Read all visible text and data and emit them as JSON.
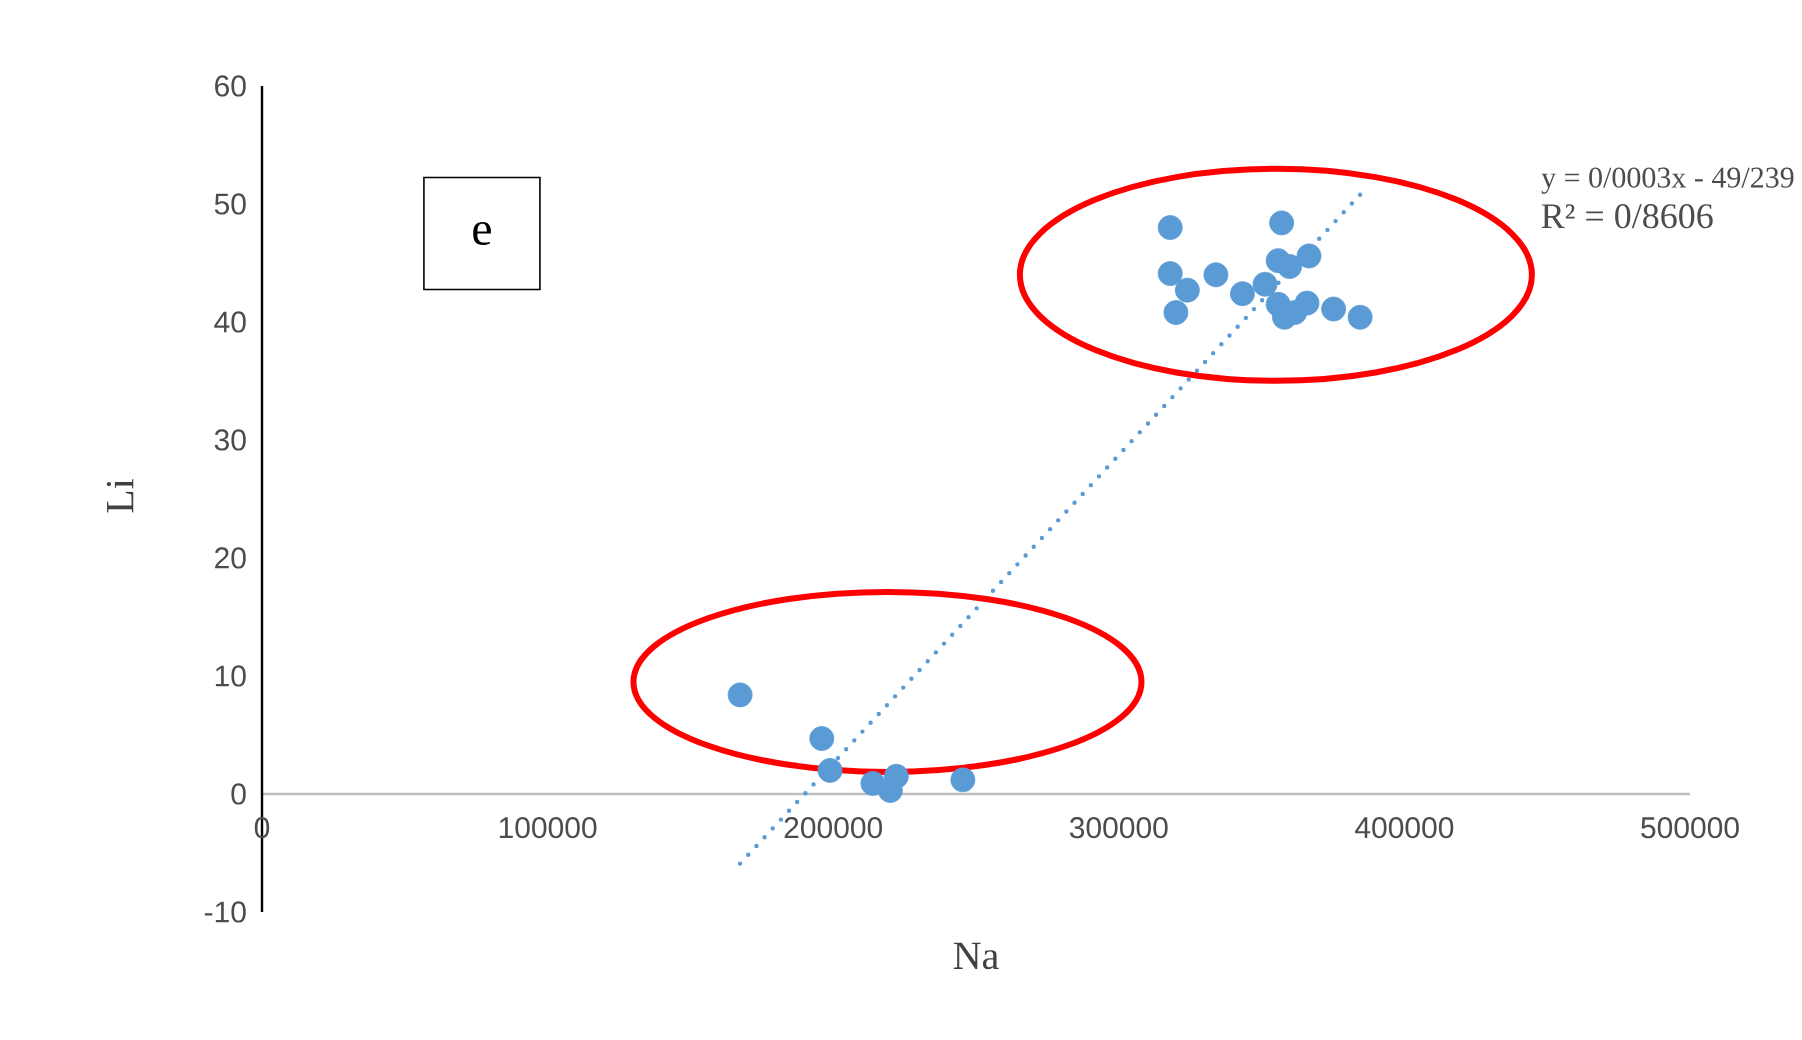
{
  "chart_data": {
    "type": "scatter",
    "xlabel": "Na",
    "ylabel": "Li",
    "xlim": [
      0,
      500000
    ],
    "ylim": [
      -10,
      60
    ],
    "xticks": [
      0,
      100000,
      200000,
      300000,
      400000,
      500000
    ],
    "yticks": [
      -10,
      0,
      10,
      20,
      30,
      40,
      50,
      60
    ],
    "grid": false,
    "series": [
      {
        "marker": "circle",
        "color": "#5b9bd5",
        "x": [
          167400,
          196000,
          198900,
          213900,
          222100,
          220000,
          245400,
          318000,
          357000,
          318000,
          324000,
          320000,
          334000,
          343300,
          351200,
          355800,
          359800,
          366600,
          355800,
          358000,
          361600,
          365900,
          375200,
          384500
        ],
        "values": [
          8.4,
          4.7,
          2.0,
          0.9,
          1.5,
          0.3,
          1.2,
          48.0,
          48.4,
          44.1,
          42.7,
          40.8,
          44.0,
          42.4,
          43.2,
          45.2,
          44.7,
          45.6,
          41.5,
          40.4,
          40.8,
          41.6,
          41.1,
          40.4
        ]
      },
      {
        "type": "line",
        "line_style": "dotted",
        "marker": "none",
        "color": "#5b9bd5",
        "x": [
          167400,
          384500
        ],
        "values": [
          -5.9,
          50.8
        ]
      }
    ],
    "annotations": [
      "e",
      "y = 0/0003x - 49/239",
      "R² = 0/8606"
    ]
  }
}
